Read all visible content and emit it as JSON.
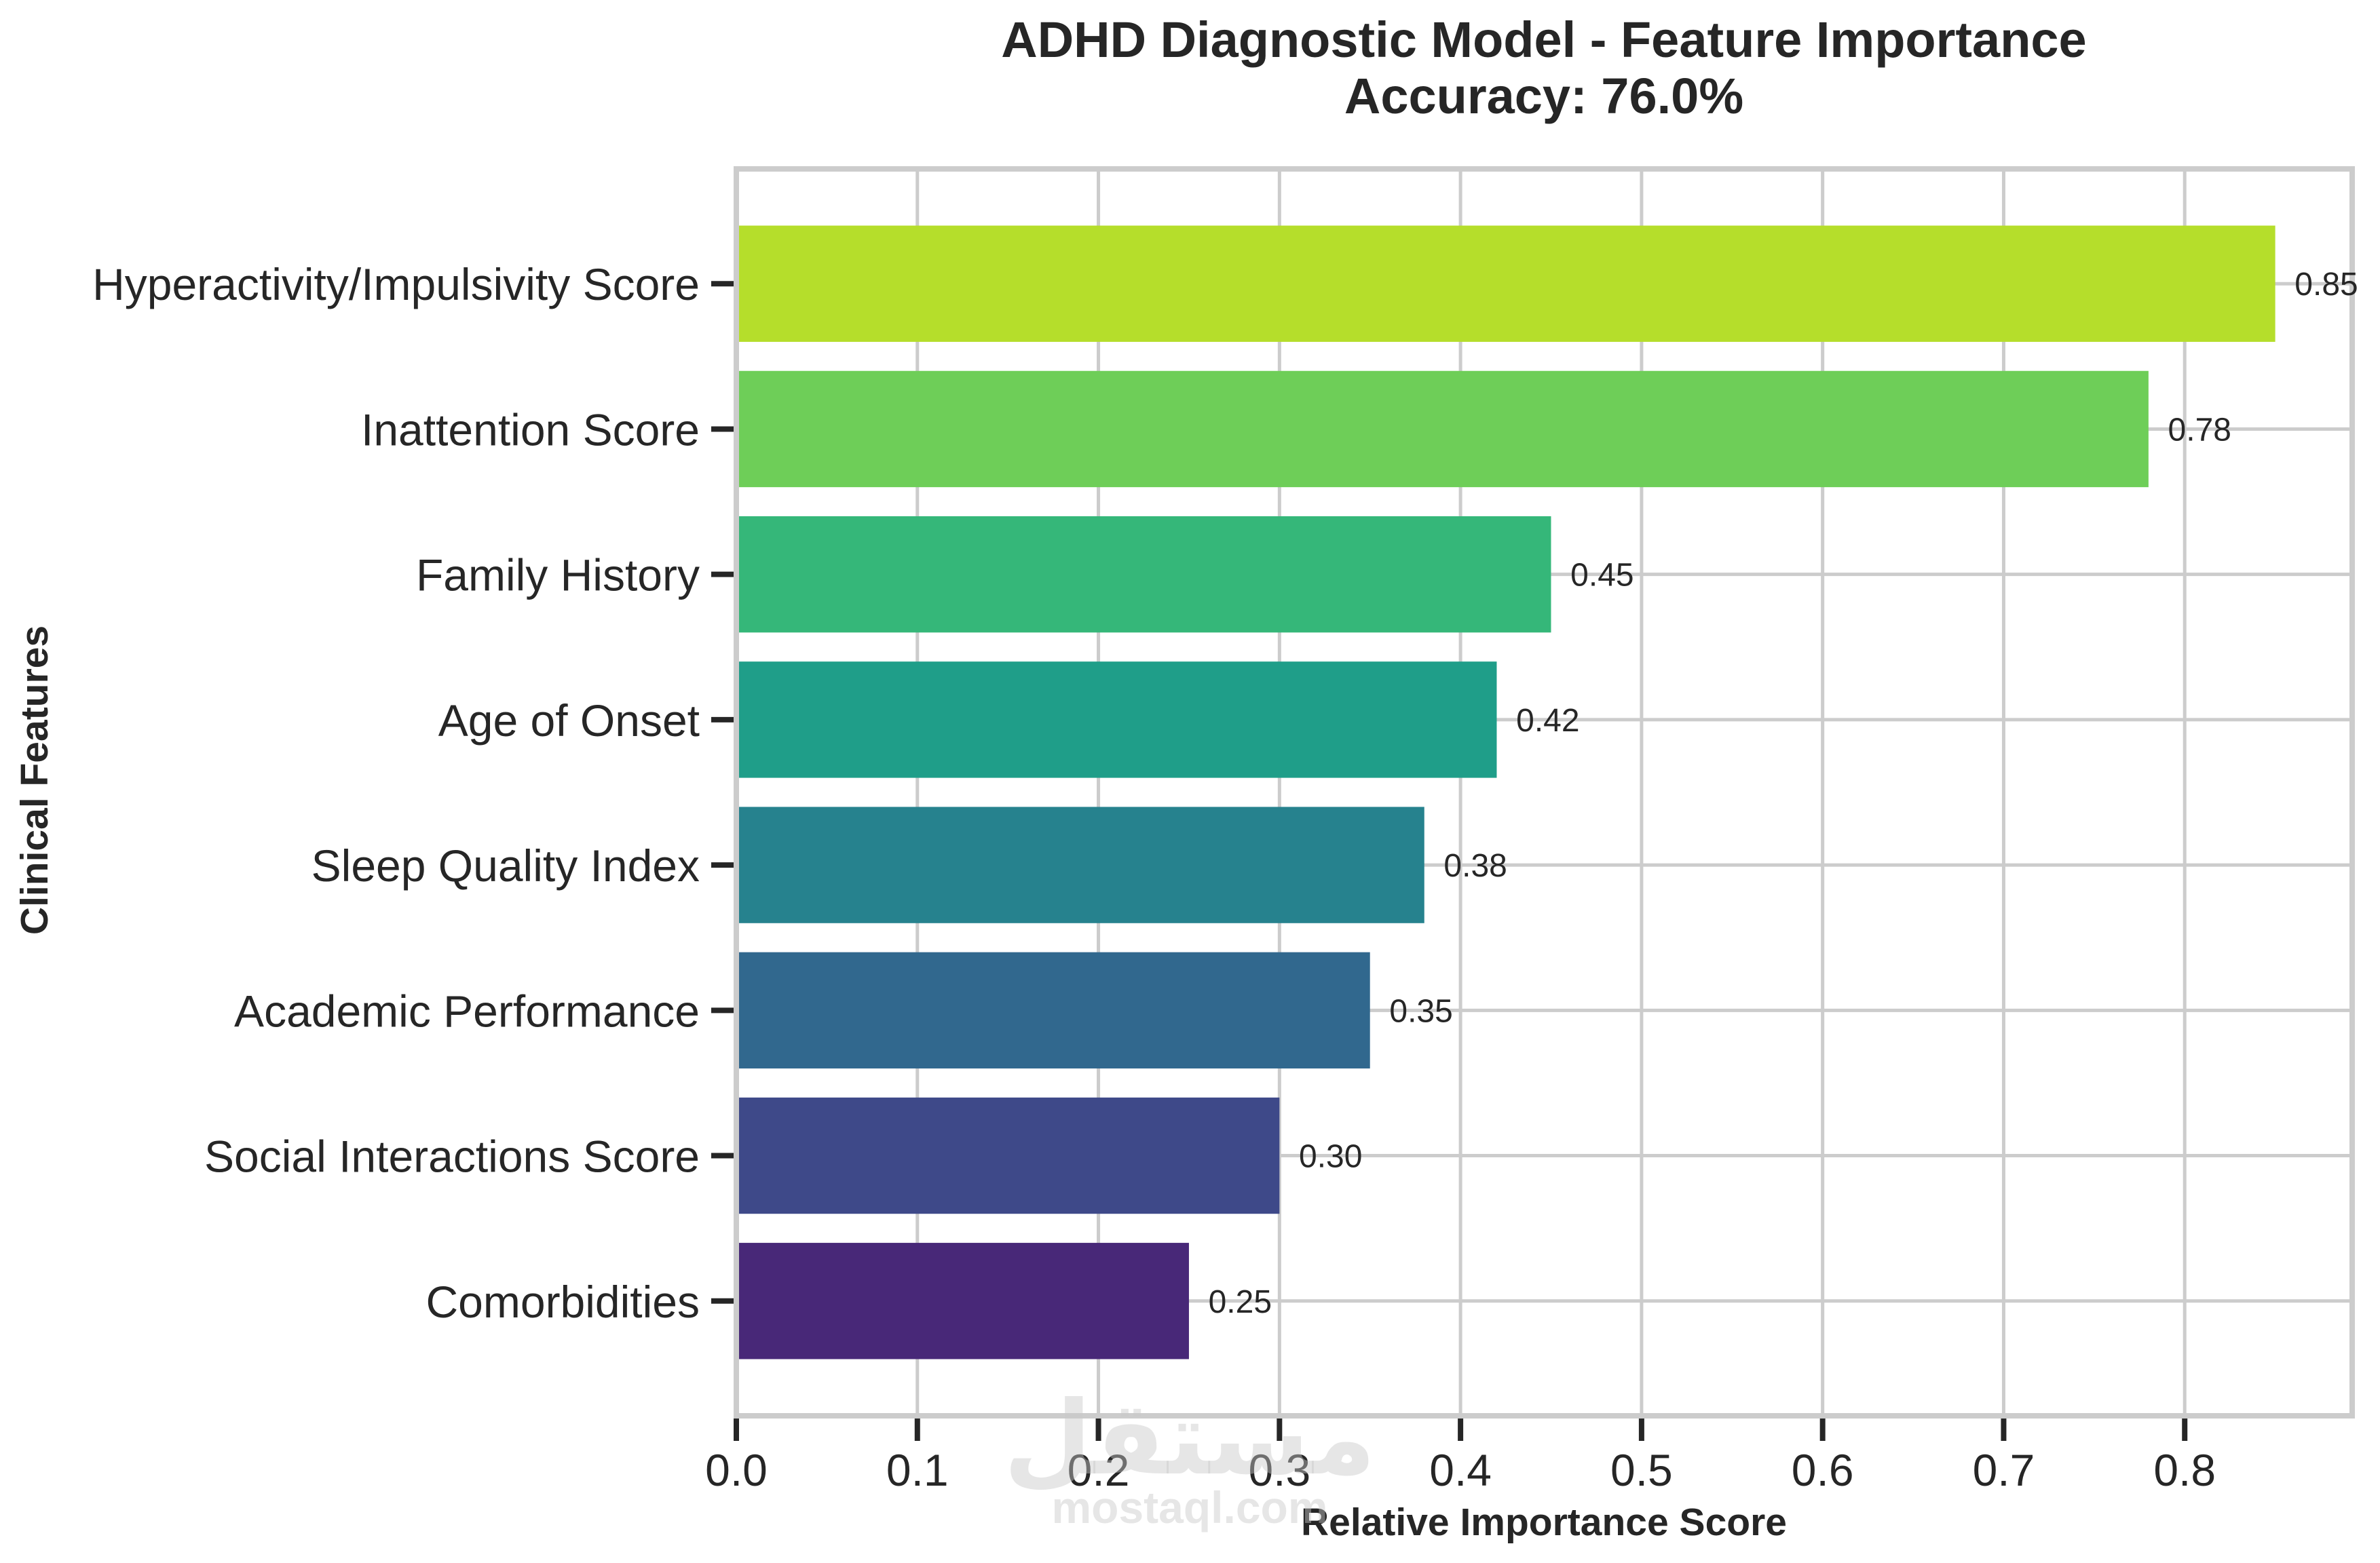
{
  "chart_data": {
    "type": "bar",
    "orientation": "horizontal",
    "title": "ADHD Diagnostic Model - Feature Importance",
    "subtitle": "Accuracy: 76.0%",
    "xlabel": "Relative Importance Score",
    "ylabel": "Clinical Features",
    "xlim": [
      0,
      0.8925
    ],
    "x_ticks": [
      0.0,
      0.1,
      0.2,
      0.3,
      0.4,
      0.5,
      0.6,
      0.7,
      0.8
    ],
    "x_tick_labels": [
      "0.0",
      "0.1",
      "0.2",
      "0.3",
      "0.4",
      "0.5",
      "0.6",
      "0.7",
      "0.8"
    ],
    "grid": true,
    "categories": [
      "Comorbidities",
      "Social Interactions Score",
      "Academic Performance",
      "Sleep Quality Index",
      "Age of Onset",
      "Family History",
      "Inattention Score",
      "Hyperactivity/Impulsivity Score"
    ],
    "values": [
      0.25,
      0.3,
      0.35,
      0.38,
      0.42,
      0.45,
      0.78,
      0.85
    ],
    "value_labels": [
      "0.25",
      "0.30",
      "0.35",
      "0.38",
      "0.42",
      "0.45",
      "0.78",
      "0.85"
    ],
    "colors": [
      "#482878",
      "#3e4989",
      "#31688e",
      "#26828e",
      "#1f9e89",
      "#35b779",
      "#6ece58",
      "#b5de2b"
    ],
    "colormap": "viridis"
  },
  "style": {
    "text_color": "#262626",
    "grid_color": "#cccccc",
    "spine_color": "#cccccc",
    "background": "#ffffff"
  },
  "watermark": {
    "arabic": "مستقل",
    "latin": "mostaql.com"
  }
}
